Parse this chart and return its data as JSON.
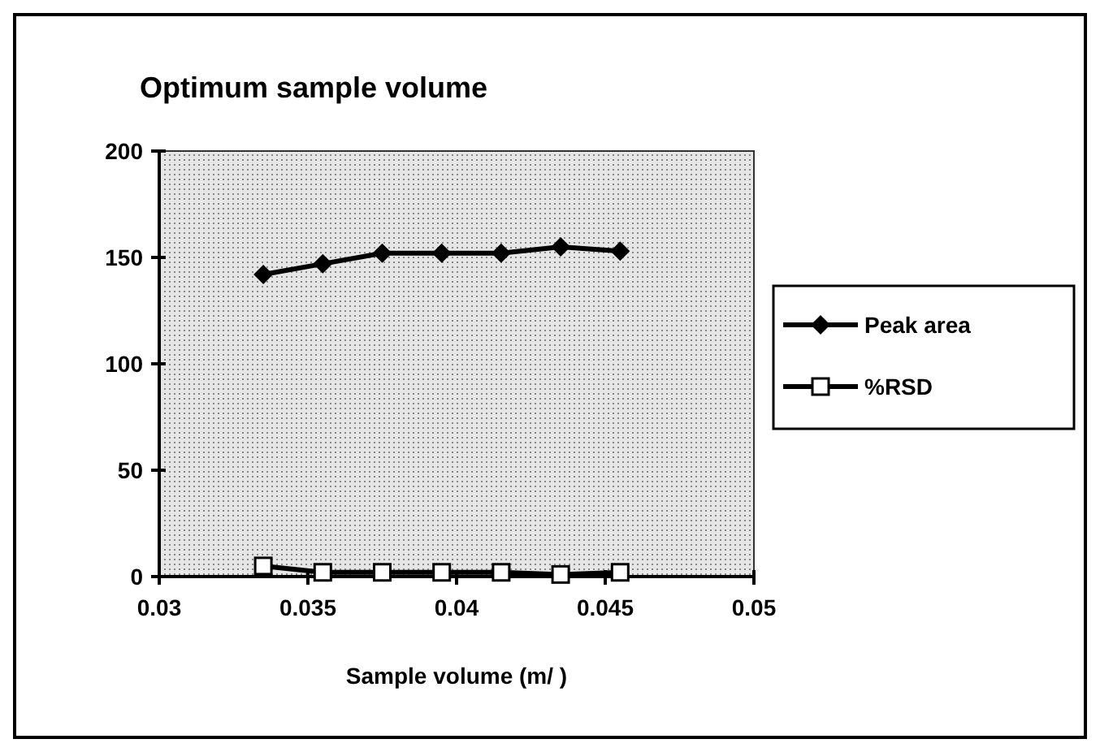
{
  "chart_data": {
    "type": "line",
    "title": "Optimum sample volume",
    "xlabel": "Sample volume (m/ )",
    "x": [
      0.0335,
      0.0355,
      0.0375,
      0.0395,
      0.0415,
      0.0435,
      0.0455
    ],
    "series": [
      {
        "name": "Peak area",
        "color": "#000000",
        "marker": "diamond",
        "values": [
          142,
          147,
          152,
          152,
          152,
          155,
          153
        ]
      },
      {
        "name": "%RSD",
        "color": "#000000",
        "marker": "square",
        "values": [
          5,
          2,
          2,
          2,
          2,
          1,
          2
        ]
      }
    ],
    "xlim": [
      0.03,
      0.05
    ],
    "xticks": [
      0.03,
      0.035,
      0.04,
      0.045,
      0.05
    ],
    "ylim": [
      0,
      200
    ],
    "yticks": [
      0,
      50,
      100,
      150,
      200
    ],
    "grid": false,
    "legend": "right"
  }
}
